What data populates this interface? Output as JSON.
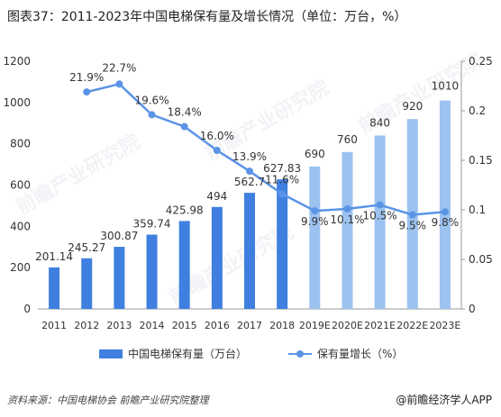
{
  "title": "图表37：2011-2023年中国电梯保有量及增长情况（单位：万台，%）",
  "footer": {
    "source": "资料来源：中国电梯协会 前瞻产业研究院整理",
    "brand": "@前瞻经济学人APP"
  },
  "watermark": "前瞻产业研究院",
  "colors": {
    "bar_actual": "#3f7fe0",
    "bar_estimate": "#9cc2f0",
    "line": "#5b94e6",
    "axis": "#999999"
  },
  "chart_data": {
    "type": "bar",
    "categories": [
      "2011",
      "2012",
      "2013",
      "2014",
      "2015",
      "2016",
      "2017",
      "2018",
      "2019E",
      "2020E",
      "2021E",
      "2022E",
      "2023E"
    ],
    "series": [
      {
        "name": "中国电梯保有量（万台）",
        "type": "bar",
        "axis": "left",
        "values": [
          201.14,
          245.27,
          300.87,
          359.74,
          425.98,
          494,
          562.7,
          627.83,
          690,
          760,
          840,
          920,
          1010
        ],
        "value_labels": [
          "201.14",
          "245.27",
          "300.87",
          "359.74",
          "425.98",
          "494",
          "562.7",
          "627.83",
          "690",
          "760",
          "840",
          "920",
          "1010"
        ]
      },
      {
        "name": "保有量增长（%）",
        "type": "line",
        "axis": "right",
        "values": [
          null,
          0.219,
          0.227,
          0.196,
          0.184,
          0.16,
          0.139,
          0.116,
          0.099,
          0.101,
          0.105,
          0.095,
          0.098
        ],
        "value_labels": [
          null,
          "21.9%",
          "22.7%",
          "19.6%",
          "18.4%",
          "16.0%",
          "13.9%",
          "11.6%",
          "9.9%",
          "10.1%",
          "10.5%",
          "9.5%",
          "9.8%"
        ]
      }
    ],
    "estimate_start_index": 8,
    "ylim_left": [
      0,
      1200
    ],
    "yticks_left": [
      "0",
      "200",
      "400",
      "600",
      "800",
      "1000",
      "1200"
    ],
    "ylim_right": [
      0,
      0.25
    ],
    "yticks_right": [
      "0",
      "0.05",
      "0.1",
      "0.15",
      "0.2",
      "0.25"
    ],
    "legend": [
      "中国电梯保有量（万台）",
      "保有量增长（%）"
    ],
    "legend_position": "bottom"
  }
}
